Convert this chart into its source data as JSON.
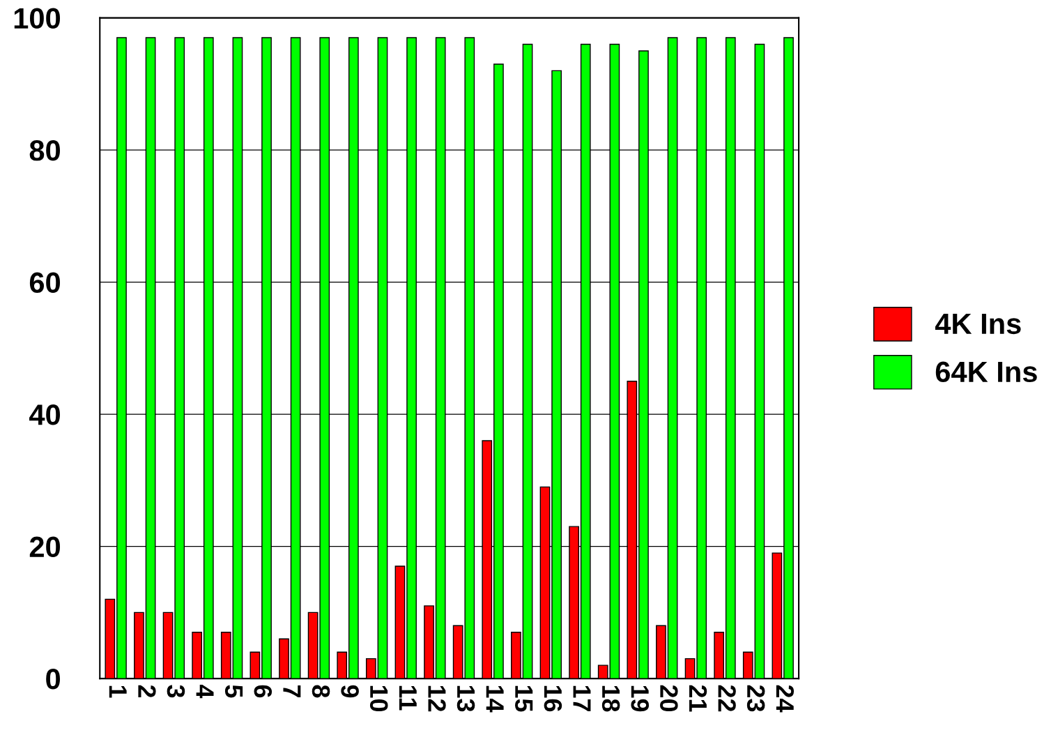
{
  "chart_data": {
    "type": "bar",
    "categories": [
      "1",
      "2",
      "3",
      "4",
      "5",
      "6",
      "7",
      "8",
      "9",
      "10",
      "11",
      "12",
      "13",
      "14",
      "15",
      "16",
      "17",
      "18",
      "19",
      "20",
      "21",
      "22",
      "23",
      "24"
    ],
    "series": [
      {
        "name": "4K Ins",
        "color": "#ff0000",
        "values": [
          12,
          10,
          10,
          7,
          7,
          4,
          6,
          10,
          4,
          3,
          17,
          11,
          8,
          36,
          7,
          29,
          23,
          2,
          45,
          8,
          3,
          7,
          4,
          19
        ]
      },
      {
        "name": "64K Ins",
        "color": "#00ff00",
        "values": [
          97,
          97,
          97,
          97,
          97,
          97,
          97,
          97,
          97,
          97,
          97,
          97,
          97,
          93,
          96,
          92,
          96,
          96,
          95,
          97,
          97,
          97,
          96,
          97
        ]
      }
    ],
    "ylim": [
      0,
      100
    ],
    "yticks": [
      0,
      20,
      40,
      60,
      80,
      100
    ],
    "grid": "y",
    "legend": "right"
  }
}
